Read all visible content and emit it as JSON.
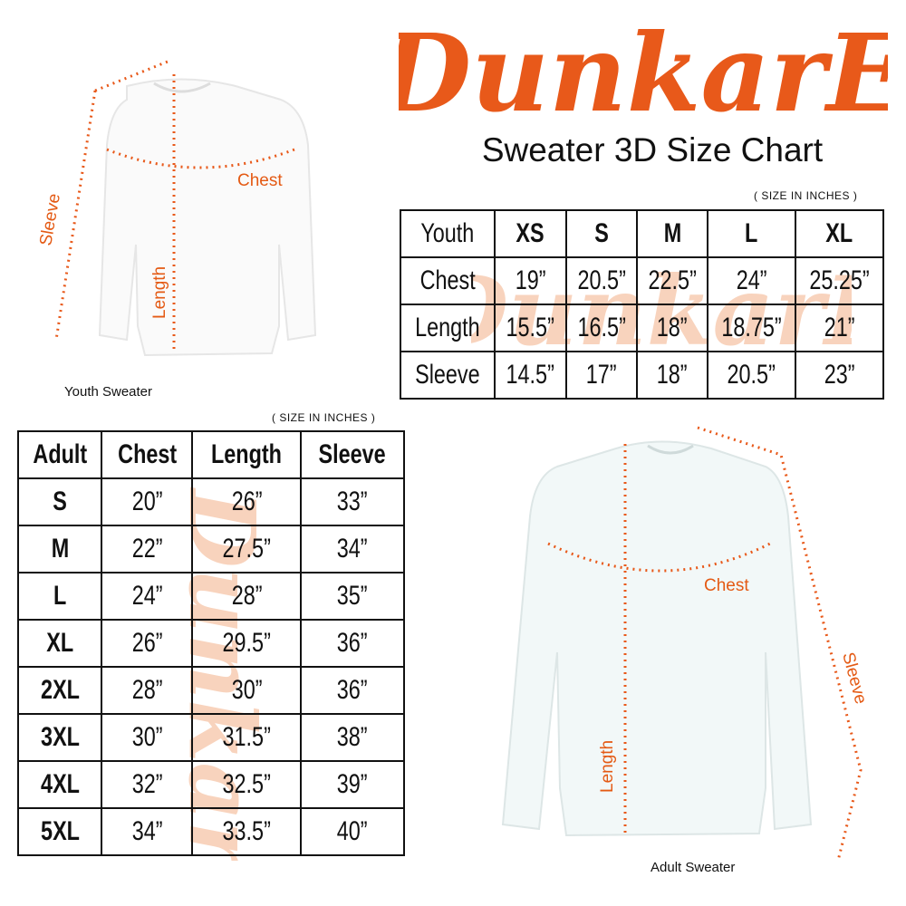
{
  "brand": {
    "logo_text": "DunkarE",
    "accent_color": "#e8591a"
  },
  "title": "Sweater 3D Size Chart",
  "youth": {
    "units_note": "( SIZE IN INCHES )",
    "caption": "Youth Sweater",
    "labels": {
      "chest": "Chest",
      "length": "Length",
      "sleeve": "Sleeve"
    },
    "table": {
      "header": [
        "Youth",
        "XS",
        "S",
        "M",
        "L",
        "XL"
      ],
      "rows": [
        [
          "Chest",
          "19”",
          "20.5”",
          "22.5”",
          "24”",
          "25.25”"
        ],
        [
          "Length",
          "15.5”",
          "16.5”",
          "18”",
          "18.75”",
          "21”"
        ],
        [
          "Sleeve",
          "14.5”",
          "17”",
          "18”",
          "20.5”",
          "23”"
        ]
      ]
    }
  },
  "adult": {
    "units_note": "( SIZE IN INCHES )",
    "caption": "Adult Sweater",
    "labels": {
      "chest": "Chest",
      "length": "Length",
      "sleeve": "Sleeve"
    },
    "table": {
      "header": [
        "Adult",
        "Chest",
        "Length",
        "Sleeve"
      ],
      "rows": [
        [
          "S",
          "20”",
          "26”",
          "33”"
        ],
        [
          "M",
          "22”",
          "27.5”",
          "34”"
        ],
        [
          "L",
          "24”",
          "28”",
          "35”"
        ],
        [
          "XL",
          "26”",
          "29.5”",
          "36”"
        ],
        [
          "2XL",
          "28”",
          "30”",
          "36”"
        ],
        [
          "3XL",
          "30”",
          "31.5”",
          "38”"
        ],
        [
          "4XL",
          "32”",
          "32.5”",
          "39”"
        ],
        [
          "5XL",
          "34”",
          "33.5”",
          "40”"
        ]
      ]
    }
  }
}
